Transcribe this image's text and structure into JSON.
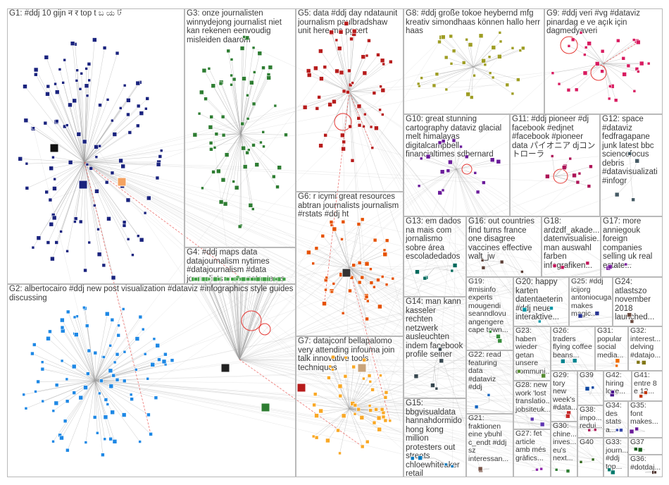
{
  "groups": [
    {
      "id": "G1",
      "label": "G1: #ddj 10 gijn न र top t ಬ ಯ ট",
      "color": "#1a237e"
    },
    {
      "id": "G2",
      "label": "G2: albertocairo #ddj new post visualization #dataviz #infographics style guides discussing",
      "color": "#1e88e5"
    },
    {
      "id": "G3",
      "label": "G3: onze journalisten winnydejong journalist niet kan rekenen eenvoudig misleiden daarom",
      "color": "#2e7d32"
    },
    {
      "id": "G4",
      "label": "G4: #ddj maps data datajournalism nytimes #datajournalism #data journalists evaconstantaras around",
      "color": "#43a047"
    },
    {
      "id": "G5",
      "label": "G5: data #ddj day ndataunit journalism paulbradshaw unit here ma pgcert",
      "color": "#b71c1c"
    },
    {
      "id": "G6",
      "label": "G6: r icymi great resources abtran journalists journalism #rstats #ddj ht",
      "color": "#e65100"
    },
    {
      "id": "G7",
      "label": "G7: datajconf bellapalomo very attending infouma join talk innovative tools techniques",
      "color": "#f9a825"
    },
    {
      "id": "G8",
      "label": "G8: #ddj große tokoe heybernd mfg kreativ simondhaas können hallo herr haas",
      "color": "#9e9d24"
    },
    {
      "id": "G9",
      "label": "G9: #ddj veri #vg #dataviz pinardag e ve açık için dagmedyaveri",
      "color": "#d81b60"
    },
    {
      "id": "G10",
      "label": "G10: great stunning cartography dataviz glacial melt himalayas digitalcampbell financialtimes sdbernard",
      "color": "#6a1b9a"
    },
    {
      "id": "G11",
      "label": "G11: #ddj pioneer #dj facebook #edjnet #facebook #pioneer data パイオニア djコントローラ",
      "color": "#ad1457"
    },
    {
      "id": "G12",
      "label": "G12: space #dataviz fedfragapane junk latest bbc sciencefocus debris #datavisualizati #infogr",
      "color": "#455a64"
    },
    {
      "id": "G13",
      "label": "G13: em dados na mais com jornalismo sobre área escoladedados",
      "color": "#00695c"
    },
    {
      "id": "G14",
      "label": "G14: man kann kasseler rechten netzwerk ausleuchten indem facebook profile seiner",
      "color": "#37474f"
    },
    {
      "id": "G15",
      "label": "G15: bbgvisualdata hannahdormido hong kong million protesters out streets chloewhiteaker retail",
      "color": "#0277bd"
    },
    {
      "id": "G16",
      "label": "G16: out countries find turns france one disagree vaccines effective walt_jw",
      "color": "#5d4037"
    },
    {
      "id": "G17",
      "label": "G17: more anniegouk foreign companies selling uk real estate...",
      "color": "#7b1fa2"
    },
    {
      "id": "G18",
      "label": "G18: ardzdf_akade... datenvisualisie... man auswahl farben infografiken...",
      "color": "#c2185b"
    },
    {
      "id": "G19",
      "label": "G19: #misinfo experts mougendi seanndlovu angengere cape town...",
      "color": "#388e3c"
    },
    {
      "id": "G20",
      "label": "G20: happy karten datentaeterin #ddj neue interaktive...",
      "color": "#0097a7"
    },
    {
      "id": "G21",
      "label": "G21: fraktionen eine ybuhl c_endt #ddj sz interessan...",
      "color": "#795548"
    },
    {
      "id": "G22",
      "label": "G22: read featuring data #dataviz #ddj",
      "color": "#1565c0"
    },
    {
      "id": "G23",
      "label": "G23: haben wieder getan unsere communi...",
      "color": "#558b2f"
    },
    {
      "id": "G24",
      "label": "G24: atlastszo november 2018 launched...",
      "color": "#6d4c41"
    },
    {
      "id": "G25",
      "label": "G25: #ddj icijorg antoniocuga makes magic...",
      "color": "#283593"
    },
    {
      "id": "G26",
      "label": "G26: traders flying coffee beans...",
      "color": "#00838f"
    },
    {
      "id": "G27",
      "label": "G27: fet article amb més gràfics...",
      "color": "#8e24aa"
    },
    {
      "id": "G28",
      "label": "G28: new work 'lost translatio... jobsiteuk...",
      "color": "#5e35b1"
    },
    {
      "id": "G29",
      "label": "G29: tory new week's #data...",
      "color": "#c62828"
    },
    {
      "id": "G30",
      "label": "G30: chine... inves... eu's next...",
      "color": "#2e7d32"
    },
    {
      "id": "G31",
      "label": "G31: popular social media...",
      "color": "#ef6c00"
    },
    {
      "id": "G32",
      "label": "G32: interest... delving #datajo...",
      "color": "#827717"
    },
    {
      "id": "G33",
      "label": "G33: journ... #ddj top...",
      "color": "#00796b"
    },
    {
      "id": "G34",
      "label": "G34: des stats a...",
      "color": "#3949ab"
    },
    {
      "id": "G35",
      "label": "G35: font makes...",
      "color": "#6a1b9a"
    },
    {
      "id": "G36",
      "label": "G36: #dotdaj...",
      "color": "#4e342e"
    },
    {
      "id": "G37",
      "label": "G37",
      "color": "#1b5e20"
    },
    {
      "id": "G38",
      "label": "G38: impo... reduj...",
      "color": "#ad1457"
    },
    {
      "id": "G39",
      "label": "G39",
      "color": "#0d47a1"
    },
    {
      "id": "G40",
      "label": "G40",
      "color": "#33691e"
    },
    {
      "id": "G41",
      "label": "G41: entre 8 e 12...",
      "color": "#bf360c"
    },
    {
      "id": "G42",
      "label": "G42: hiring love...",
      "color": "#4a148c"
    }
  ]
}
